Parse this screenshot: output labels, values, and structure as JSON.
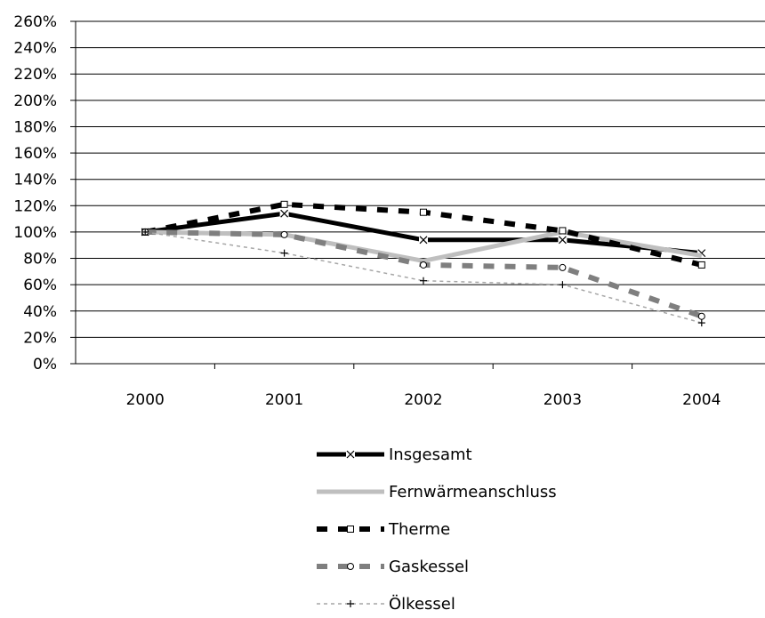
{
  "chart_data": {
    "type": "line",
    "x": [
      "2000",
      "2001",
      "2002",
      "2003",
      "2004"
    ],
    "ylim": [
      0,
      260
    ],
    "yticks": [
      "0%",
      "20%",
      "40%",
      "60%",
      "80%",
      "100%",
      "120%",
      "140%",
      "160%",
      "180%",
      "200%",
      "220%",
      "240%",
      "260%"
    ],
    "grid": true,
    "legend_position": "bottom",
    "series": [
      {
        "name": "Insgesamt",
        "values": [
          100,
          114,
          94,
          94,
          84
        ],
        "color": "#000000",
        "marker": "x"
      },
      {
        "name": "Fernwärmeanschluss",
        "values": [
          100,
          98,
          78,
          100,
          82
        ],
        "color": "#bfbfbf",
        "marker": "none"
      },
      {
        "name": "Therme",
        "values": [
          100,
          121,
          115,
          101,
          75
        ],
        "color": "#000000",
        "marker": "square"
      },
      {
        "name": "Gaskessel",
        "values": [
          100,
          98,
          75,
          73,
          36
        ],
        "color": "#7f7f7f",
        "marker": "circle"
      },
      {
        "name": "Ölkessel",
        "values": [
          100,
          84,
          63,
          60,
          31
        ],
        "color": "#a6a6a6",
        "marker": "plus"
      }
    ]
  }
}
